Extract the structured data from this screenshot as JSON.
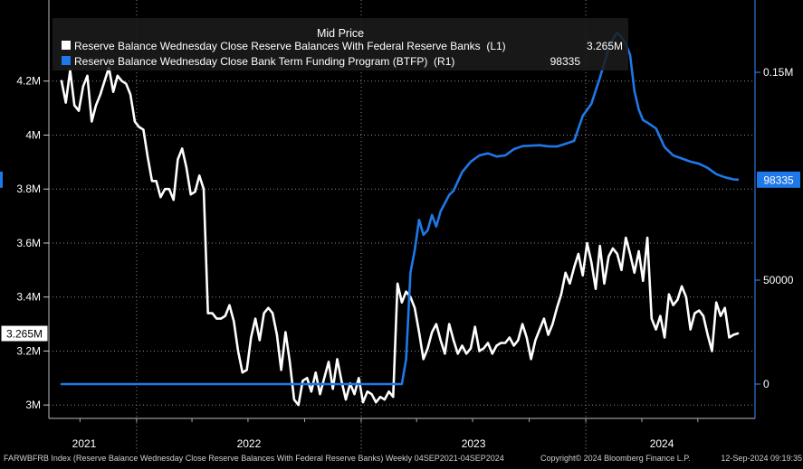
{
  "chart_data": {
    "type": "line",
    "legend_title": "Mid Price",
    "legend_placement": "top-left",
    "grid": true,
    "x_axis": {
      "labels": [
        "2021",
        "2022",
        "2023",
        "2024"
      ],
      "range": [
        "2021-09-04",
        "2024-09-04"
      ]
    },
    "y_left": {
      "ticks": [
        {
          "value": 3000000,
          "label": "3M"
        },
        {
          "value": 3200000,
          "label": "3.2M"
        },
        {
          "value": 3400000,
          "label": "3.4M"
        },
        {
          "value": 3600000,
          "label": "3.6M"
        },
        {
          "value": 3800000,
          "label": "3.8M"
        },
        {
          "value": 4000000,
          "label": "4M"
        },
        {
          "value": 4200000,
          "label": "4.2M"
        }
      ],
      "range": [
        2850000,
        4400000
      ]
    },
    "y_right": {
      "ticks": [
        {
          "value": 0,
          "label": "0"
        },
        {
          "value": 50000,
          "label": "50000"
        },
        {
          "value": 150000,
          "label": "0.15M"
        }
      ],
      "range": [
        -16000,
        183000
      ]
    },
    "series": [
      {
        "name": "Reserve Balance Wednesday Close Reserve Balances With Federal Reserve Banks  (L1)",
        "last_label": "3.265M",
        "last_value": 3265000,
        "axis": "left",
        "color": "#ffffff",
        "values": [
          [
            "2021-09-01",
            4200000
          ],
          [
            "2021-09-08",
            4120000
          ],
          [
            "2021-09-15",
            4240000
          ],
          [
            "2021-09-22",
            4110000
          ],
          [
            "2021-09-29",
            4090000
          ],
          [
            "2021-10-06",
            4180000
          ],
          [
            "2021-10-13",
            4220000
          ],
          [
            "2021-10-20",
            4050000
          ],
          [
            "2021-10-27",
            4110000
          ],
          [
            "2021-11-03",
            4150000
          ],
          [
            "2021-11-10",
            4200000
          ],
          [
            "2021-11-17",
            4250000
          ],
          [
            "2021-11-24",
            4160000
          ],
          [
            "2021-12-01",
            4220000
          ],
          [
            "2021-12-08",
            4200000
          ],
          [
            "2021-12-15",
            4190000
          ],
          [
            "2021-12-22",
            4150000
          ],
          [
            "2021-12-29",
            4050000
          ],
          [
            "2022-01-05",
            4030000
          ],
          [
            "2022-01-12",
            4020000
          ],
          [
            "2022-01-19",
            3920000
          ],
          [
            "2022-01-26",
            3830000
          ],
          [
            "2022-02-02",
            3830000
          ],
          [
            "2022-02-09",
            3770000
          ],
          [
            "2022-02-16",
            3800000
          ],
          [
            "2022-02-23",
            3800000
          ],
          [
            "2022-03-02",
            3760000
          ],
          [
            "2022-03-09",
            3910000
          ],
          [
            "2022-03-16",
            3950000
          ],
          [
            "2022-03-23",
            3880000
          ],
          [
            "2022-03-30",
            3780000
          ],
          [
            "2022-04-06",
            3790000
          ],
          [
            "2022-04-13",
            3850000
          ],
          [
            "2022-04-20",
            3800000
          ],
          [
            "2022-04-27",
            3340000
          ],
          [
            "2022-05-04",
            3340000
          ],
          [
            "2022-05-11",
            3320000
          ],
          [
            "2022-05-18",
            3320000
          ],
          [
            "2022-05-25",
            3330000
          ],
          [
            "2022-06-01",
            3370000
          ],
          [
            "2022-06-08",
            3310000
          ],
          [
            "2022-06-15",
            3200000
          ],
          [
            "2022-06-22",
            3120000
          ],
          [
            "2022-06-29",
            3130000
          ],
          [
            "2022-07-06",
            3250000
          ],
          [
            "2022-07-13",
            3320000
          ],
          [
            "2022-07-20",
            3240000
          ],
          [
            "2022-07-27",
            3340000
          ],
          [
            "2022-08-03",
            3360000
          ],
          [
            "2022-08-10",
            3340000
          ],
          [
            "2022-08-17",
            3260000
          ],
          [
            "2022-08-24",
            3130000
          ],
          [
            "2022-08-31",
            3270000
          ],
          [
            "2022-09-07",
            3160000
          ],
          [
            "2022-09-14",
            3020000
          ],
          [
            "2022-09-21",
            3000000
          ],
          [
            "2022-09-28",
            3090000
          ],
          [
            "2022-10-05",
            3100000
          ],
          [
            "2022-10-12",
            3050000
          ],
          [
            "2022-10-19",
            3120000
          ],
          [
            "2022-10-26",
            3040000
          ],
          [
            "2022-11-02",
            3100000
          ],
          [
            "2022-11-09",
            3160000
          ],
          [
            "2022-11-16",
            3060000
          ],
          [
            "2022-11-23",
            3170000
          ],
          [
            "2022-11-30",
            3090000
          ],
          [
            "2022-12-07",
            3020000
          ],
          [
            "2022-12-14",
            3080000
          ],
          [
            "2022-12-21",
            3040000
          ],
          [
            "2022-12-28",
            3100000
          ],
          [
            "2023-01-04",
            3010000
          ],
          [
            "2023-01-11",
            3050000
          ],
          [
            "2023-01-18",
            3040000
          ],
          [
            "2023-01-25",
            3010000
          ],
          [
            "2023-02-01",
            3030000
          ],
          [
            "2023-02-08",
            3020000
          ],
          [
            "2023-02-15",
            3050000
          ],
          [
            "2023-02-22",
            3030000
          ],
          [
            "2023-03-01",
            3450000
          ],
          [
            "2023-03-08",
            3380000
          ],
          [
            "2023-03-15",
            3420000
          ],
          [
            "2023-03-22",
            3400000
          ],
          [
            "2023-03-29",
            3360000
          ],
          [
            "2023-04-05",
            3270000
          ],
          [
            "2023-04-12",
            3170000
          ],
          [
            "2023-04-19",
            3210000
          ],
          [
            "2023-04-26",
            3270000
          ],
          [
            "2023-05-03",
            3300000
          ],
          [
            "2023-05-10",
            3240000
          ],
          [
            "2023-05-17",
            3190000
          ],
          [
            "2023-05-24",
            3300000
          ],
          [
            "2023-05-31",
            3240000
          ],
          [
            "2023-06-07",
            3190000
          ],
          [
            "2023-06-14",
            3220000
          ],
          [
            "2023-06-21",
            3190000
          ],
          [
            "2023-06-28",
            3210000
          ],
          [
            "2023-07-05",
            3290000
          ],
          [
            "2023-07-12",
            3200000
          ],
          [
            "2023-07-19",
            3210000
          ],
          [
            "2023-07-26",
            3230000
          ],
          [
            "2023-08-02",
            3190000
          ],
          [
            "2023-08-09",
            3220000
          ],
          [
            "2023-08-16",
            3230000
          ],
          [
            "2023-08-23",
            3230000
          ],
          [
            "2023-08-30",
            3250000
          ],
          [
            "2023-09-06",
            3220000
          ],
          [
            "2023-09-13",
            3240000
          ],
          [
            "2023-09-20",
            3300000
          ],
          [
            "2023-09-27",
            3250000
          ],
          [
            "2023-10-04",
            3170000
          ],
          [
            "2023-10-11",
            3240000
          ],
          [
            "2023-10-18",
            3280000
          ],
          [
            "2023-10-25",
            3320000
          ],
          [
            "2023-11-01",
            3260000
          ],
          [
            "2023-11-08",
            3300000
          ],
          [
            "2023-11-15",
            3360000
          ],
          [
            "2023-11-22",
            3410000
          ],
          [
            "2023-11-29",
            3490000
          ],
          [
            "2023-12-06",
            3450000
          ],
          [
            "2023-12-13",
            3510000
          ],
          [
            "2023-12-20",
            3560000
          ],
          [
            "2023-12-27",
            3480000
          ],
          [
            "2024-01-03",
            3600000
          ],
          [
            "2024-01-10",
            3530000
          ],
          [
            "2024-01-17",
            3430000
          ],
          [
            "2024-01-24",
            3590000
          ],
          [
            "2024-01-31",
            3450000
          ],
          [
            "2024-02-07",
            3550000
          ],
          [
            "2024-02-14",
            3580000
          ],
          [
            "2024-02-21",
            3560000
          ],
          [
            "2024-02-28",
            3500000
          ],
          [
            "2024-03-06",
            3620000
          ],
          [
            "2024-03-13",
            3560000
          ],
          [
            "2024-03-20",
            3490000
          ],
          [
            "2024-03-27",
            3570000
          ],
          [
            "2024-04-03",
            3460000
          ],
          [
            "2024-04-10",
            3620000
          ],
          [
            "2024-04-17",
            3320000
          ],
          [
            "2024-04-24",
            3280000
          ],
          [
            "2024-05-01",
            3330000
          ],
          [
            "2024-05-08",
            3250000
          ],
          [
            "2024-05-15",
            3410000
          ],
          [
            "2024-05-22",
            3370000
          ],
          [
            "2024-05-29",
            3390000
          ],
          [
            "2024-06-05",
            3440000
          ],
          [
            "2024-06-12",
            3400000
          ],
          [
            "2024-06-19",
            3280000
          ],
          [
            "2024-06-26",
            3340000
          ],
          [
            "2024-07-03",
            3350000
          ],
          [
            "2024-07-10",
            3330000
          ],
          [
            "2024-07-17",
            3260000
          ],
          [
            "2024-07-24",
            3200000
          ],
          [
            "2024-07-31",
            3380000
          ],
          [
            "2024-08-07",
            3330000
          ],
          [
            "2024-08-14",
            3360000
          ],
          [
            "2024-08-21",
            3250000
          ],
          [
            "2024-08-28",
            3260000
          ],
          [
            "2024-09-04",
            3265000
          ]
        ]
      },
      {
        "name": "Reserve Balance Wednesday Close Bank Term Funding Program (BTFP)  (R1)",
        "last_label": "98335",
        "last_value": 98335,
        "axis": "right",
        "color": "#1f78e8",
        "values": [
          [
            "2021-09-01",
            0
          ],
          [
            "2023-03-08",
            0
          ],
          [
            "2023-03-15",
            11943
          ],
          [
            "2023-03-22",
            53669
          ],
          [
            "2023-03-29",
            64403
          ],
          [
            "2023-04-05",
            79021
          ],
          [
            "2023-04-12",
            71838
          ],
          [
            "2023-04-19",
            73978
          ],
          [
            "2023-04-26",
            81325
          ],
          [
            "2023-05-03",
            75792
          ],
          [
            "2023-05-10",
            83102
          ],
          [
            "2023-05-17",
            87000
          ],
          [
            "2023-05-24",
            91000
          ],
          [
            "2023-05-31",
            93000
          ],
          [
            "2023-06-14",
            102000
          ],
          [
            "2023-06-28",
            107000
          ],
          [
            "2023-07-12",
            110000
          ],
          [
            "2023-07-26",
            111000
          ],
          [
            "2023-08-09",
            109500
          ],
          [
            "2023-08-23",
            110000
          ],
          [
            "2023-09-06",
            113000
          ],
          [
            "2023-09-20",
            114500
          ],
          [
            "2023-10-04",
            114700
          ],
          [
            "2023-10-18",
            114900
          ],
          [
            "2023-11-01",
            114400
          ],
          [
            "2023-11-15",
            114300
          ],
          [
            "2023-11-29",
            115600
          ],
          [
            "2023-12-13",
            117000
          ],
          [
            "2023-12-27",
            129000
          ],
          [
            "2024-01-10",
            134800
          ],
          [
            "2024-01-24",
            147500
          ],
          [
            "2024-02-07",
            161400
          ],
          [
            "2024-02-14",
            166000
          ],
          [
            "2024-02-21",
            169000
          ],
          [
            "2024-02-28",
            167000
          ],
          [
            "2024-03-06",
            163600
          ],
          [
            "2024-03-13",
            158400
          ],
          [
            "2024-03-20",
            141000
          ],
          [
            "2024-03-27",
            132000
          ],
          [
            "2024-04-03",
            127000
          ],
          [
            "2024-04-10",
            125800
          ],
          [
            "2024-04-24",
            123000
          ],
          [
            "2024-05-08",
            114000
          ],
          [
            "2024-05-22",
            110000
          ],
          [
            "2024-06-05",
            108500
          ],
          [
            "2024-06-19",
            107000
          ],
          [
            "2024-07-03",
            106000
          ],
          [
            "2024-07-17",
            104000
          ],
          [
            "2024-07-31",
            101000
          ],
          [
            "2024-08-14",
            99500
          ],
          [
            "2024-08-28",
            98500
          ],
          [
            "2024-09-04",
            98335
          ]
        ]
      }
    ],
    "footer": {
      "left": "FARWBFRB Index (Reserve Balance Wednesday Close Reserve Balances With Federal Reserve Banks)  Weekly 04SEP2021-04SEP2024",
      "center": "Copyright© 2024 Bloomberg Finance L.P.",
      "right": "12-Sep-2024 09:19:35"
    }
  }
}
